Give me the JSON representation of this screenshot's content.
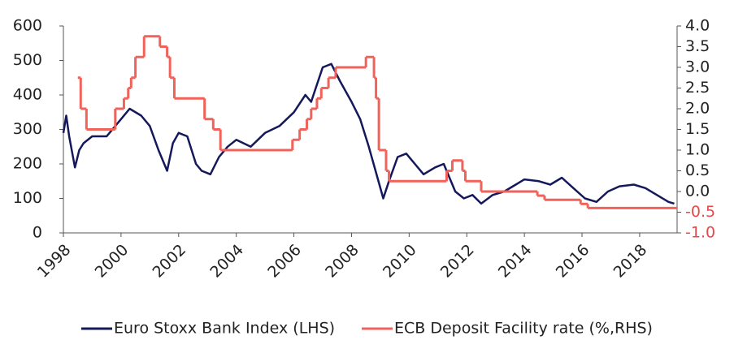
{
  "chart_data": {
    "type": "line",
    "xlim": [
      1998,
      2019.3
    ],
    "xticks": [
      1998,
      2000,
      2002,
      2004,
      2006,
      2008,
      2010,
      2012,
      2014,
      2016,
      2018
    ],
    "ylim": [
      0,
      600
    ],
    "yticks": [
      0,
      100,
      200,
      300,
      400,
      500,
      600
    ],
    "y2lim": [
      -1,
      4
    ],
    "y2ticks": [
      {
        "value": -1,
        "label": "-1.0"
      },
      -0.5,
      {
        "value": 0,
        "label": "0.0"
      },
      0.5,
      {
        "value": 1,
        "label": "1.0"
      },
      1.5,
      {
        "value": 2,
        "label": "2.0"
      },
      2.5,
      {
        "value": 3,
        "label": "3.0"
      },
      3.5,
      {
        "value": 4,
        "label": "4.0"
      }
    ],
    "y2_negative_tick_color": "#e8474a",
    "legend": "bottom",
    "series": [
      {
        "name": "Euro Stoxx Bank Index (LHS)",
        "color": "#15185a",
        "axis": "y",
        "x": [
          1998.0,
          1998.1,
          1998.2,
          1998.4,
          1998.55,
          1998.7,
          1999.0,
          1999.5,
          2000.0,
          2000.3,
          2000.7,
          2001.0,
          2001.3,
          2001.6,
          2001.8,
          2002.0,
          2002.3,
          2002.6,
          2002.8,
          2003.1,
          2003.4,
          2003.7,
          2004.0,
          2004.5,
          2005.0,
          2005.5,
          2006.0,
          2006.4,
          2006.6,
          2007.0,
          2007.3,
          2007.6,
          2008.0,
          2008.3,
          2008.6,
          2008.9,
          2009.1,
          2009.3,
          2009.6,
          2009.9,
          2010.2,
          2010.5,
          2010.9,
          2011.2,
          2011.6,
          2011.9,
          2012.2,
          2012.5,
          2012.9,
          2013.3,
          2013.7,
          2014.0,
          2014.5,
          2014.9,
          2015.3,
          2015.7,
          2016.1,
          2016.5,
          2016.9,
          2017.3,
          2017.8,
          2018.2,
          2018.6,
          2019.0,
          2019.2
        ],
        "values": [
          290,
          340,
          280,
          190,
          240,
          260,
          280,
          280,
          330,
          360,
          340,
          310,
          240,
          180,
          260,
          290,
          280,
          200,
          180,
          170,
          220,
          250,
          270,
          250,
          290,
          310,
          350,
          400,
          380,
          480,
          490,
          440,
          380,
          330,
          250,
          160,
          100,
          150,
          220,
          230,
          200,
          170,
          190,
          200,
          120,
          100,
          110,
          85,
          110,
          120,
          140,
          155,
          150,
          140,
          160,
          130,
          100,
          90,
          120,
          135,
          140,
          130,
          110,
          90,
          85
        ]
      },
      {
        "name": "ECB Deposit Facility rate (%,RHS)",
        "color": "#f0625a",
        "axis": "y2",
        "step": "post",
        "x": [
          1998.5,
          1998.6,
          1998.8,
          1999.8,
          2000.1,
          2000.25,
          2000.35,
          2000.5,
          2000.8,
          2001.35,
          2001.6,
          2001.7,
          2001.85,
          2002.9,
          2003.2,
          2003.45,
          2005.95,
          2006.2,
          2006.45,
          2006.6,
          2006.8,
          2006.95,
          2007.2,
          2007.45,
          2008.5,
          2008.78,
          2008.85,
          2008.95,
          2009.2,
          2009.3,
          2011.3,
          2011.5,
          2011.85,
          2011.95,
          2012.5,
          2014.45,
          2014.7,
          2015.95,
          2016.2
        ],
        "values": [
          2.75,
          2.0,
          1.5,
          2.0,
          2.25,
          2.5,
          2.75,
          3.25,
          3.75,
          3.5,
          3.25,
          2.75,
          2.25,
          1.75,
          1.5,
          1.0,
          1.25,
          1.5,
          1.75,
          2.0,
          2.25,
          2.5,
          2.75,
          3.0,
          3.25,
          2.75,
          2.25,
          1.0,
          0.5,
          0.25,
          0.5,
          0.75,
          0.5,
          0.25,
          0.0,
          -0.1,
          -0.2,
          -0.3,
          -0.4
        ]
      }
    ]
  }
}
